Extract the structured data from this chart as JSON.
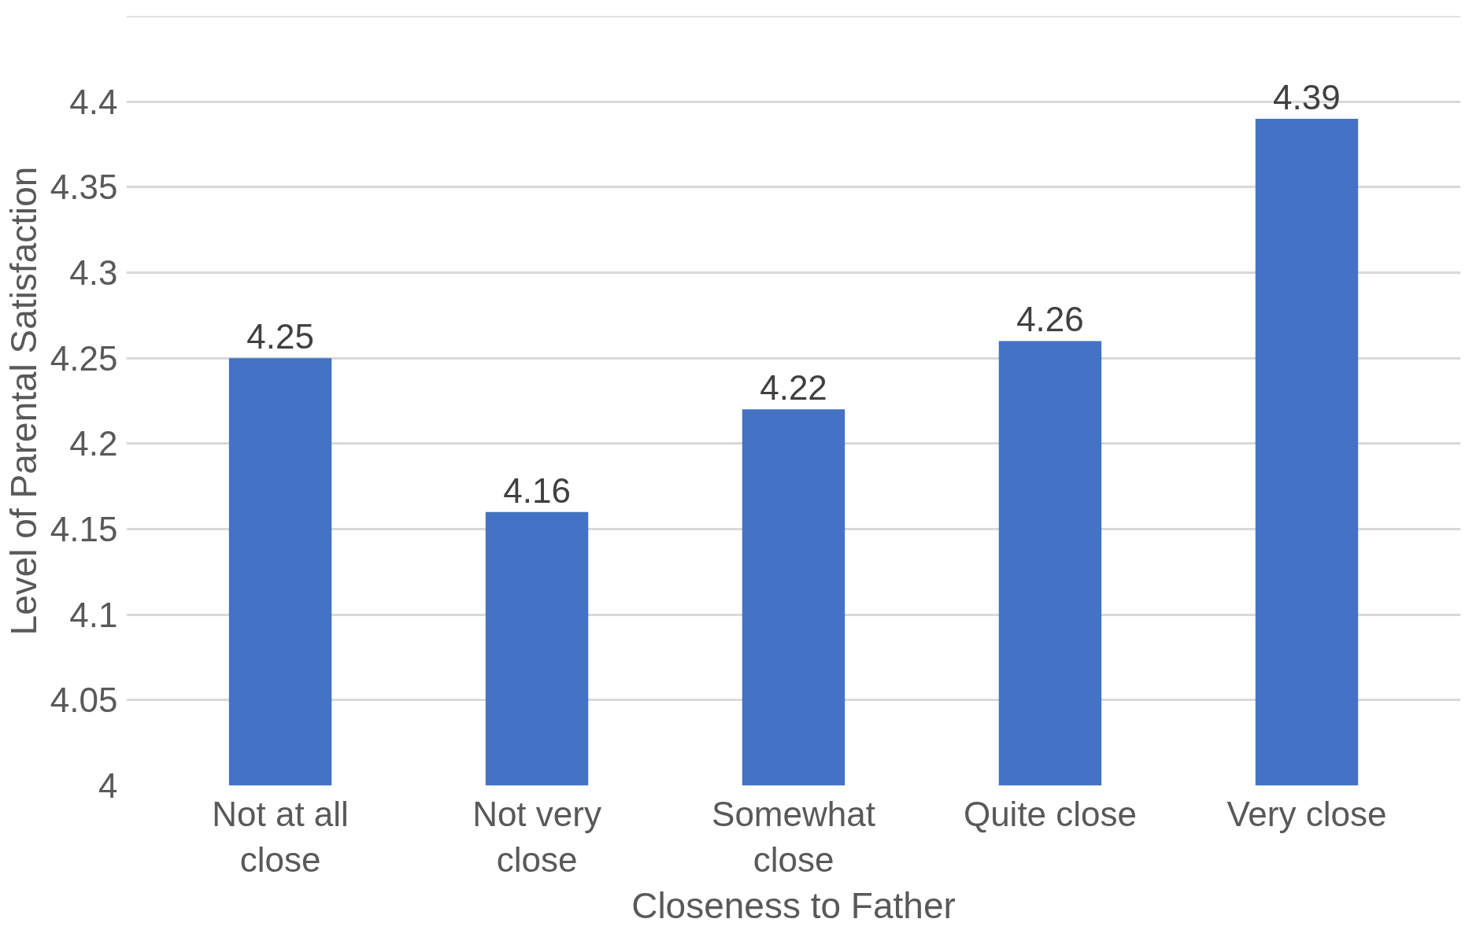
{
  "chart_data": {
    "type": "bar",
    "xlabel": "Closeness to Father",
    "ylabel": "Level of Parental Satisfaction",
    "categories": [
      "Not at all close",
      "Not very close",
      "Somewhat close",
      "Quite close",
      "Very close"
    ],
    "values": [
      4.25,
      4.16,
      4.22,
      4.26,
      4.39
    ],
    "color": "#4472c4",
    "ylim": [
      4,
      4.45
    ],
    "yticks": [
      4,
      4.05,
      4.1,
      4.15,
      4.2,
      4.25,
      4.3,
      4.35,
      4.4,
      {
        "value": 4.45,
        "label": null
      }
    ],
    "grid": "y",
    "data_labels": true
  }
}
